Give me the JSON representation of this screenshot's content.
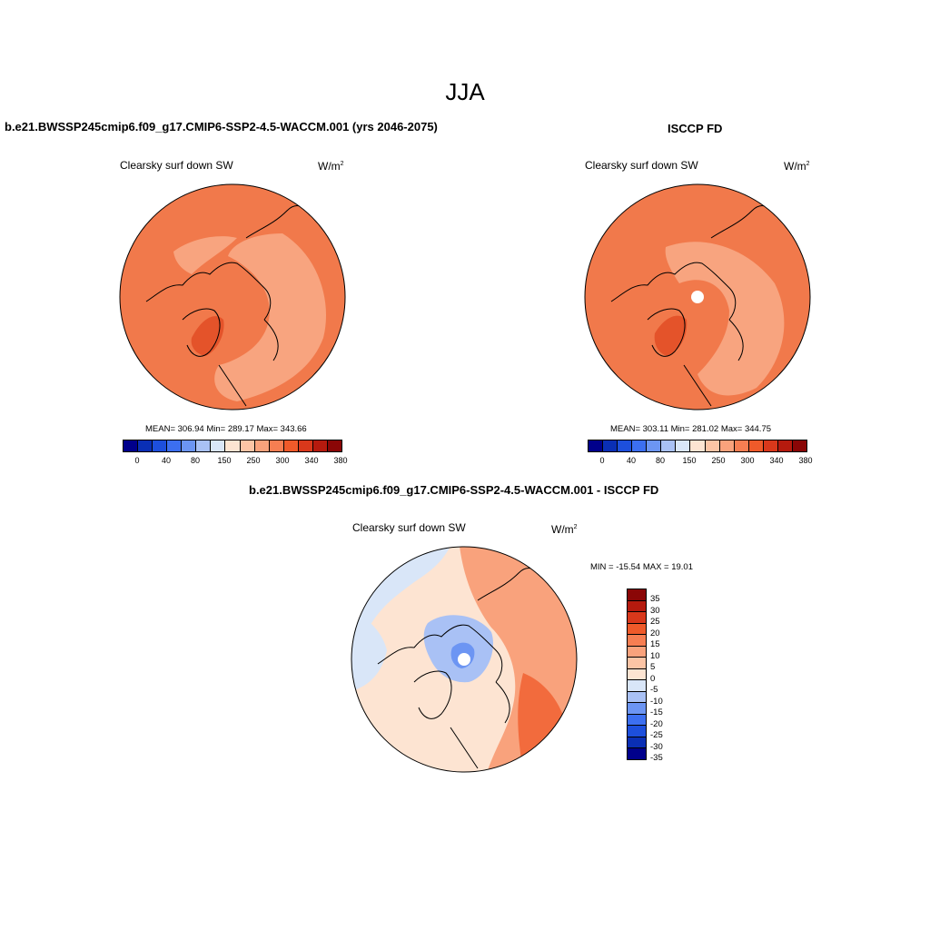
{
  "title": "JJA",
  "panels": {
    "model": {
      "title": "b.e21.BWSSP245cmip6.f09_g17.CMIP6-SSP2-4.5-WACCM.001 (yrs 2046-2075)",
      "variable": "Clearsky surf down SW",
      "units_base": "W/m",
      "units_exp": "2",
      "stats": "MEAN= 306.94  Min= 289.17  Max= 343.66"
    },
    "obs": {
      "title": "ISCCP FD",
      "variable": "Clearsky surf down SW",
      "units_base": "W/m",
      "units_exp": "2",
      "stats": "MEAN= 303.11  Min= 281.02  Max= 344.75"
    },
    "diff": {
      "title": "b.e21.BWSSP245cmip6.f09_g17.CMIP6-SSP2-4.5-WACCM.001 - ISCCP FD",
      "variable": "Clearsky surf down SW",
      "units_base": "W/m",
      "units_exp": "2",
      "stats": "MIN = -15.54 MAX =  19.01"
    }
  },
  "chart_data": [
    {
      "type": "heatmap",
      "projection": "north polar stereographic",
      "title": "b.e21.BWSSP245cmip6.f09_g17.CMIP6-SSP2-4.5-WACCM.001 (yrs 2046-2075)",
      "variable": "Clearsky surf down SW",
      "units": "W/m2",
      "mean": 306.94,
      "min": 289.17,
      "max": 343.66,
      "colorbar_labels": [
        "0",
        "40",
        "80",
        "150",
        "250",
        "300",
        "340",
        "380"
      ]
    },
    {
      "type": "heatmap",
      "projection": "north polar stereographic",
      "title": "ISCCP FD",
      "variable": "Clearsky surf down SW",
      "units": "W/m2",
      "mean": 303.11,
      "min": 281.02,
      "max": 344.75,
      "colorbar_labels": [
        "0",
        "40",
        "80",
        "150",
        "250",
        "300",
        "340",
        "380"
      ]
    },
    {
      "type": "heatmap",
      "projection": "north polar stereographic",
      "title": "b.e21.BWSSP245cmip6.f09_g17.CMIP6-SSP2-4.5-WACCM.001 - ISCCP FD",
      "variable": "Clearsky surf down SW",
      "units": "W/m2",
      "min": -15.54,
      "max": 19.01,
      "colorbar_labels": [
        "35",
        "30",
        "25",
        "20",
        "15",
        "10",
        "5",
        "0",
        "-5",
        "-10",
        "-15",
        "-20",
        "-25",
        "-30",
        "-35"
      ]
    }
  ],
  "colors": {
    "abs_scale": [
      "#00008b",
      "#0a2fb5",
      "#1d4fdc",
      "#3c6ff0",
      "#6c95f3",
      "#a9c1f5",
      "#d9e6f8",
      "#fde4d2",
      "#fcc4a5",
      "#f9a27c",
      "#f67e52",
      "#ef5a2a",
      "#d9381b",
      "#b51a0e",
      "#8a0606"
    ],
    "diff_scale": [
      "#8a0606",
      "#b51a0e",
      "#d9381b",
      "#ef5a2a",
      "#f67e52",
      "#f9a27c",
      "#fcc4a5",
      "#fde4d2",
      "#d9e6f8",
      "#a9c1f5",
      "#6c95f3",
      "#3c6ff0",
      "#1d4fdc",
      "#0a2fb5",
      "#00008b"
    ],
    "abs_base": "#f1794b",
    "abs_light": "#f8a47f",
    "abs_dark": "#e4532a",
    "diff_base": "#fde4d2",
    "diff_pos": "#f9a27c",
    "diff_pos_strong": "#f26b3d",
    "diff_neg": "#d9e6f8",
    "diff_neg_mid": "#a9c1f5",
    "diff_neg_strong": "#6c95f3"
  }
}
